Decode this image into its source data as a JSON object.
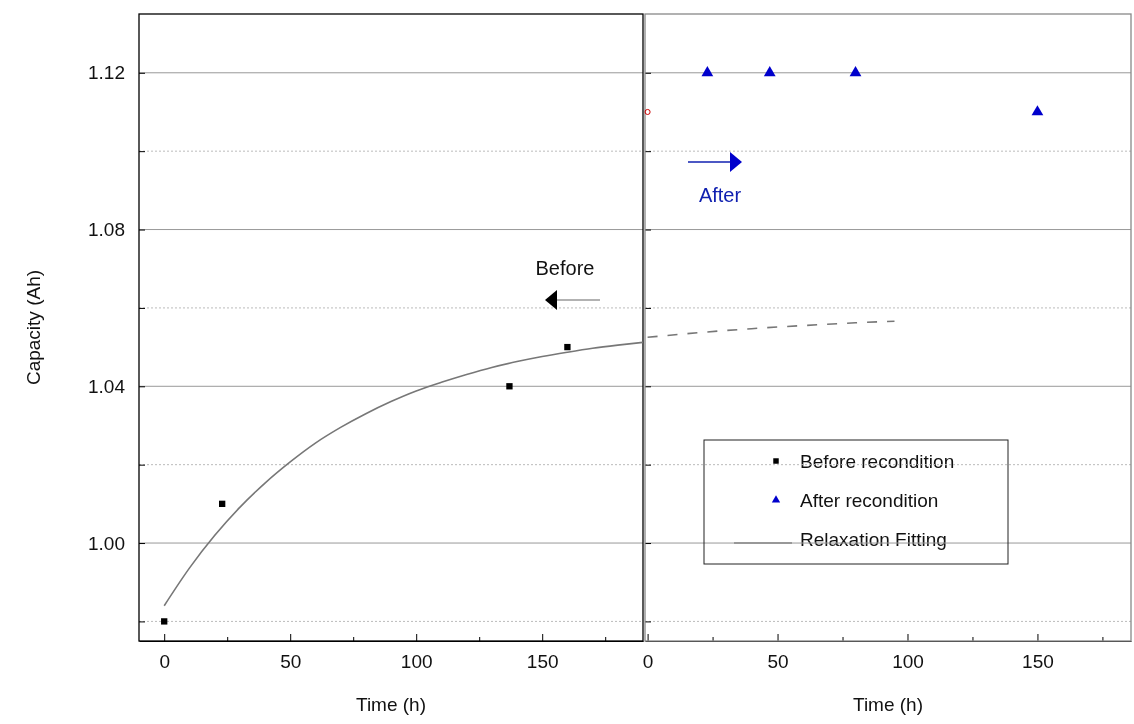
{
  "chart_data": [
    {
      "type": "scatter",
      "ylabel": "Capacity (Ah)",
      "xlabel": "Time (h)",
      "xlim": [
        -10,
        190
      ],
      "ylim": [
        0.975,
        1.135
      ],
      "xticks": [
        0,
        {
          "value": 25,
          "label": null
        },
        50,
        {
          "value": 75,
          "label": null
        },
        100,
        {
          "value": 125,
          "label": null
        },
        150,
        {
          "value": 175,
          "label": null
        }
      ],
      "yticks": [
        {
          "value": 0.98,
          "label": null
        },
        {
          "value": 1.0,
          "label": "1.00"
        },
        {
          "value": 1.02,
          "label": null
        },
        {
          "value": 1.04,
          "label": "1.04"
        },
        {
          "value": 1.06,
          "label": null
        },
        {
          "value": 1.08,
          "label": "1.08"
        },
        {
          "value": 1.1,
          "label": null
        },
        {
          "value": 1.12,
          "label": "1.12"
        }
      ],
      "grid": "y",
      "legend": "bottom right",
      "series": [
        {
          "name": "Before recondition",
          "marker": "square",
          "color": "#000000",
          "x": [
            0,
            23,
            137,
            160
          ],
          "values": [
            0.98,
            1.01,
            1.04,
            1.05
          ]
        },
        {
          "name": "Relaxation Fitting",
          "type": "line",
          "line_style": "solid",
          "color": "#777777",
          "x": [
            0,
            10,
            20,
            30,
            40,
            50,
            60,
            70,
            80,
            90,
            100,
            110,
            120,
            130,
            140,
            150,
            160,
            170,
            180,
            190
          ],
          "values": [
            0.984,
            0.9936,
            1.0019,
            1.0091,
            1.0153,
            1.0207,
            1.0255,
            1.0295,
            1.033,
            1.0361,
            1.0388,
            1.041,
            1.043,
            1.0448,
            1.0463,
            1.0476,
            1.0487,
            1.0497,
            1.0505,
            1.0512
          ]
        }
      ],
      "annotations": [
        "Before"
      ]
    },
    {
      "type": "scatter",
      "xlabel": "Time (h)",
      "xlim": [
        -1,
        186
      ],
      "ylim": [
        0.975,
        1.135
      ],
      "tick_labels": "x",
      "xticks": [
        0,
        {
          "value": 25,
          "label": null
        },
        50,
        {
          "value": 75,
          "label": null
        },
        100,
        {
          "value": 125,
          "label": null
        },
        150,
        {
          "value": 175,
          "label": null
        }
      ],
      "yticks": [
        {
          "value": 0.98,
          "label": null
        },
        {
          "value": 1.0,
          "label": null
        },
        {
          "value": 1.02,
          "label": null
        },
        {
          "value": 1.04,
          "label": null
        },
        {
          "value": 1.06,
          "label": null
        },
        {
          "value": 1.08,
          "label": null
        },
        {
          "value": 1.1,
          "label": null
        },
        {
          "value": 1.12,
          "label": null
        }
      ],
      "grid": "y",
      "legend": "bottom",
      "series": [
        {
          "type": "line",
          "line_style": "dashed",
          "color": "#777777",
          "x": [
            0,
            20,
            40,
            60,
            80,
            95
          ],
          "values": [
            1.0525,
            1.0537,
            1.0547,
            1.0555,
            1.0562,
            1.0566
          ]
        },
        {
          "marker": "circle",
          "color": "#cc0000",
          "x": [
            0
          ],
          "values": [
            1.11
          ]
        },
        {
          "name": "After recondition",
          "marker": "triangle",
          "color": "#0000cc",
          "x": [
            23,
            47,
            80,
            150
          ],
          "values": [
            1.12,
            1.12,
            1.12,
            1.11
          ]
        }
      ],
      "annotations": [
        "After"
      ]
    }
  ]
}
